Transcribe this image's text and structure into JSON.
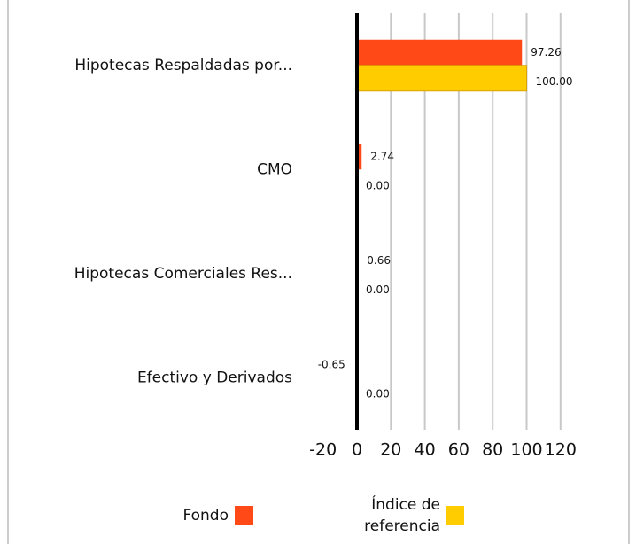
{
  "chart_data": {
    "type": "hbar",
    "categories": [
      "Hipotecas Respaldadas por...",
      "CMO",
      "Hipotecas Comerciales Res...",
      "Efectivo y Derivados"
    ],
    "series": [
      {
        "name": "Fondo",
        "color": "#ff4a17",
        "values": [
          97.26,
          2.74,
          0.66,
          -0.65
        ],
        "value_labels": [
          "97.26",
          "2.74",
          "0.66",
          "-0.65"
        ]
      },
      {
        "name": "Índice de referencia",
        "color": "#ffcc00",
        "values": [
          100,
          0,
          0,
          0
        ],
        "value_labels": [
          "100.00",
          "0.00",
          "0.00",
          "0.00"
        ]
      }
    ],
    "xlim": [
      -20,
      120
    ],
    "xticks": [
      -20,
      0,
      20,
      40,
      60,
      80,
      100,
      120
    ],
    "grid": true
  }
}
